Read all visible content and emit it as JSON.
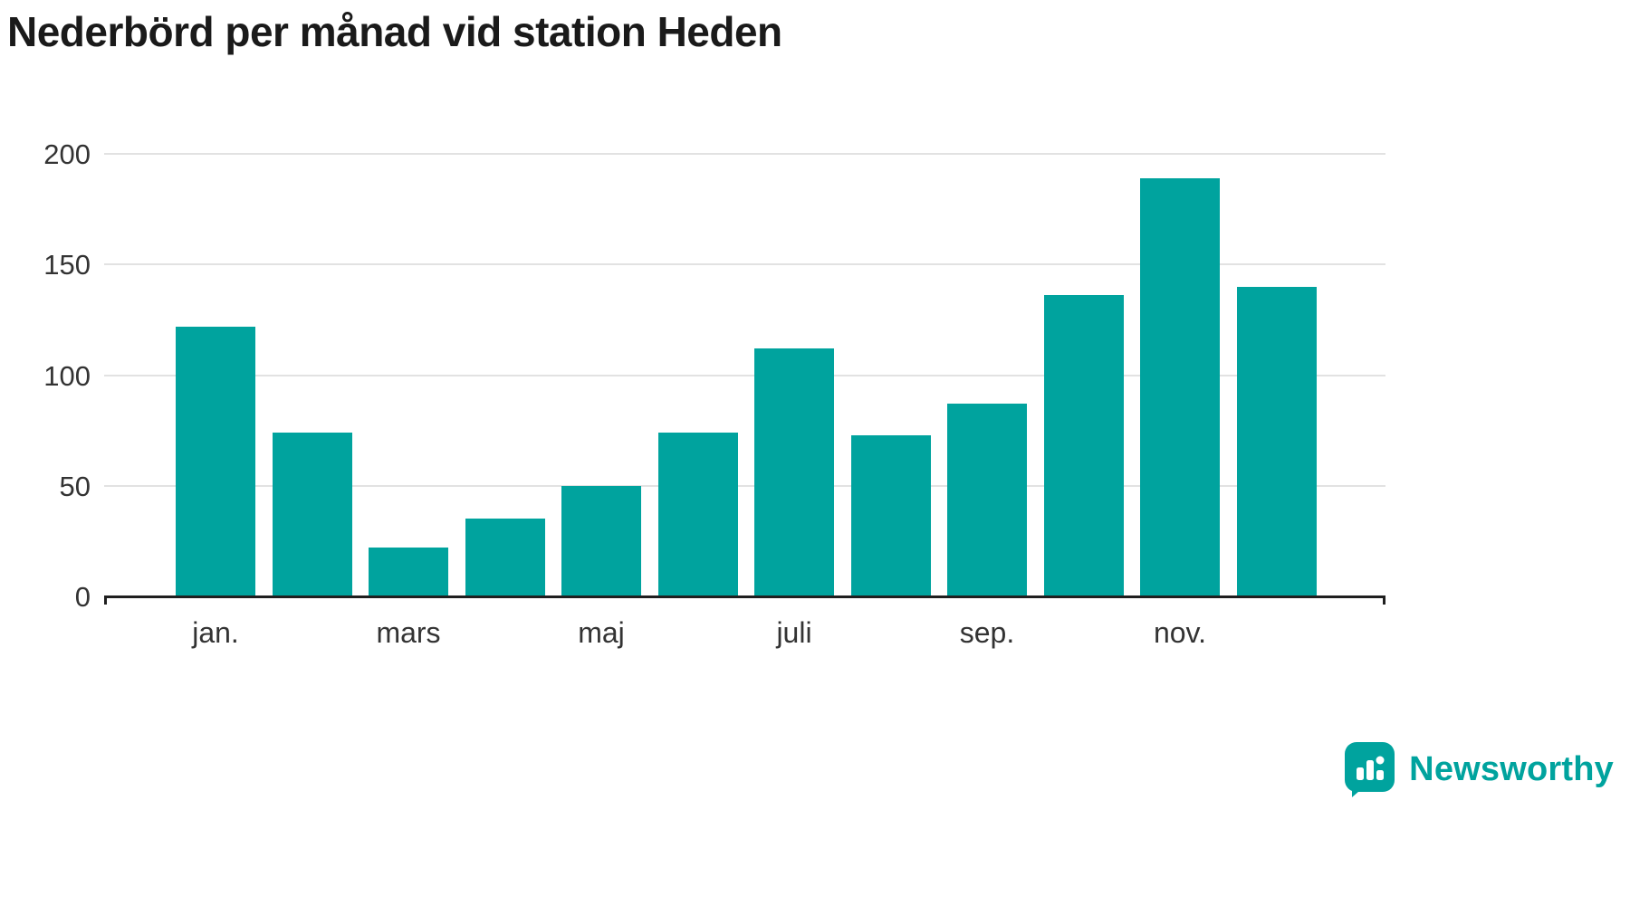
{
  "chart_data": {
    "type": "bar",
    "title": "Nederbörd per månad vid station Heden",
    "values": [
      122,
      74,
      22,
      35,
      50,
      74,
      112,
      73,
      87,
      136,
      189,
      140
    ],
    "x_tick_labels": [
      "jan.",
      "mars",
      "maj",
      "juli",
      "sep.",
      "nov."
    ],
    "x_tick_positions": [
      0,
      2,
      4,
      6,
      8,
      10
    ],
    "y_ticks": [
      0,
      50,
      100,
      150,
      200
    ],
    "ylim": [
      0,
      200
    ],
    "bar_color": "#00a39e",
    "grid": "horizontal",
    "legend": "none"
  },
  "branding": {
    "logo_text": "Newsworthy",
    "logo_icon": "newsworthy-badge-bar-chart",
    "brand_color": "#00a39e"
  }
}
